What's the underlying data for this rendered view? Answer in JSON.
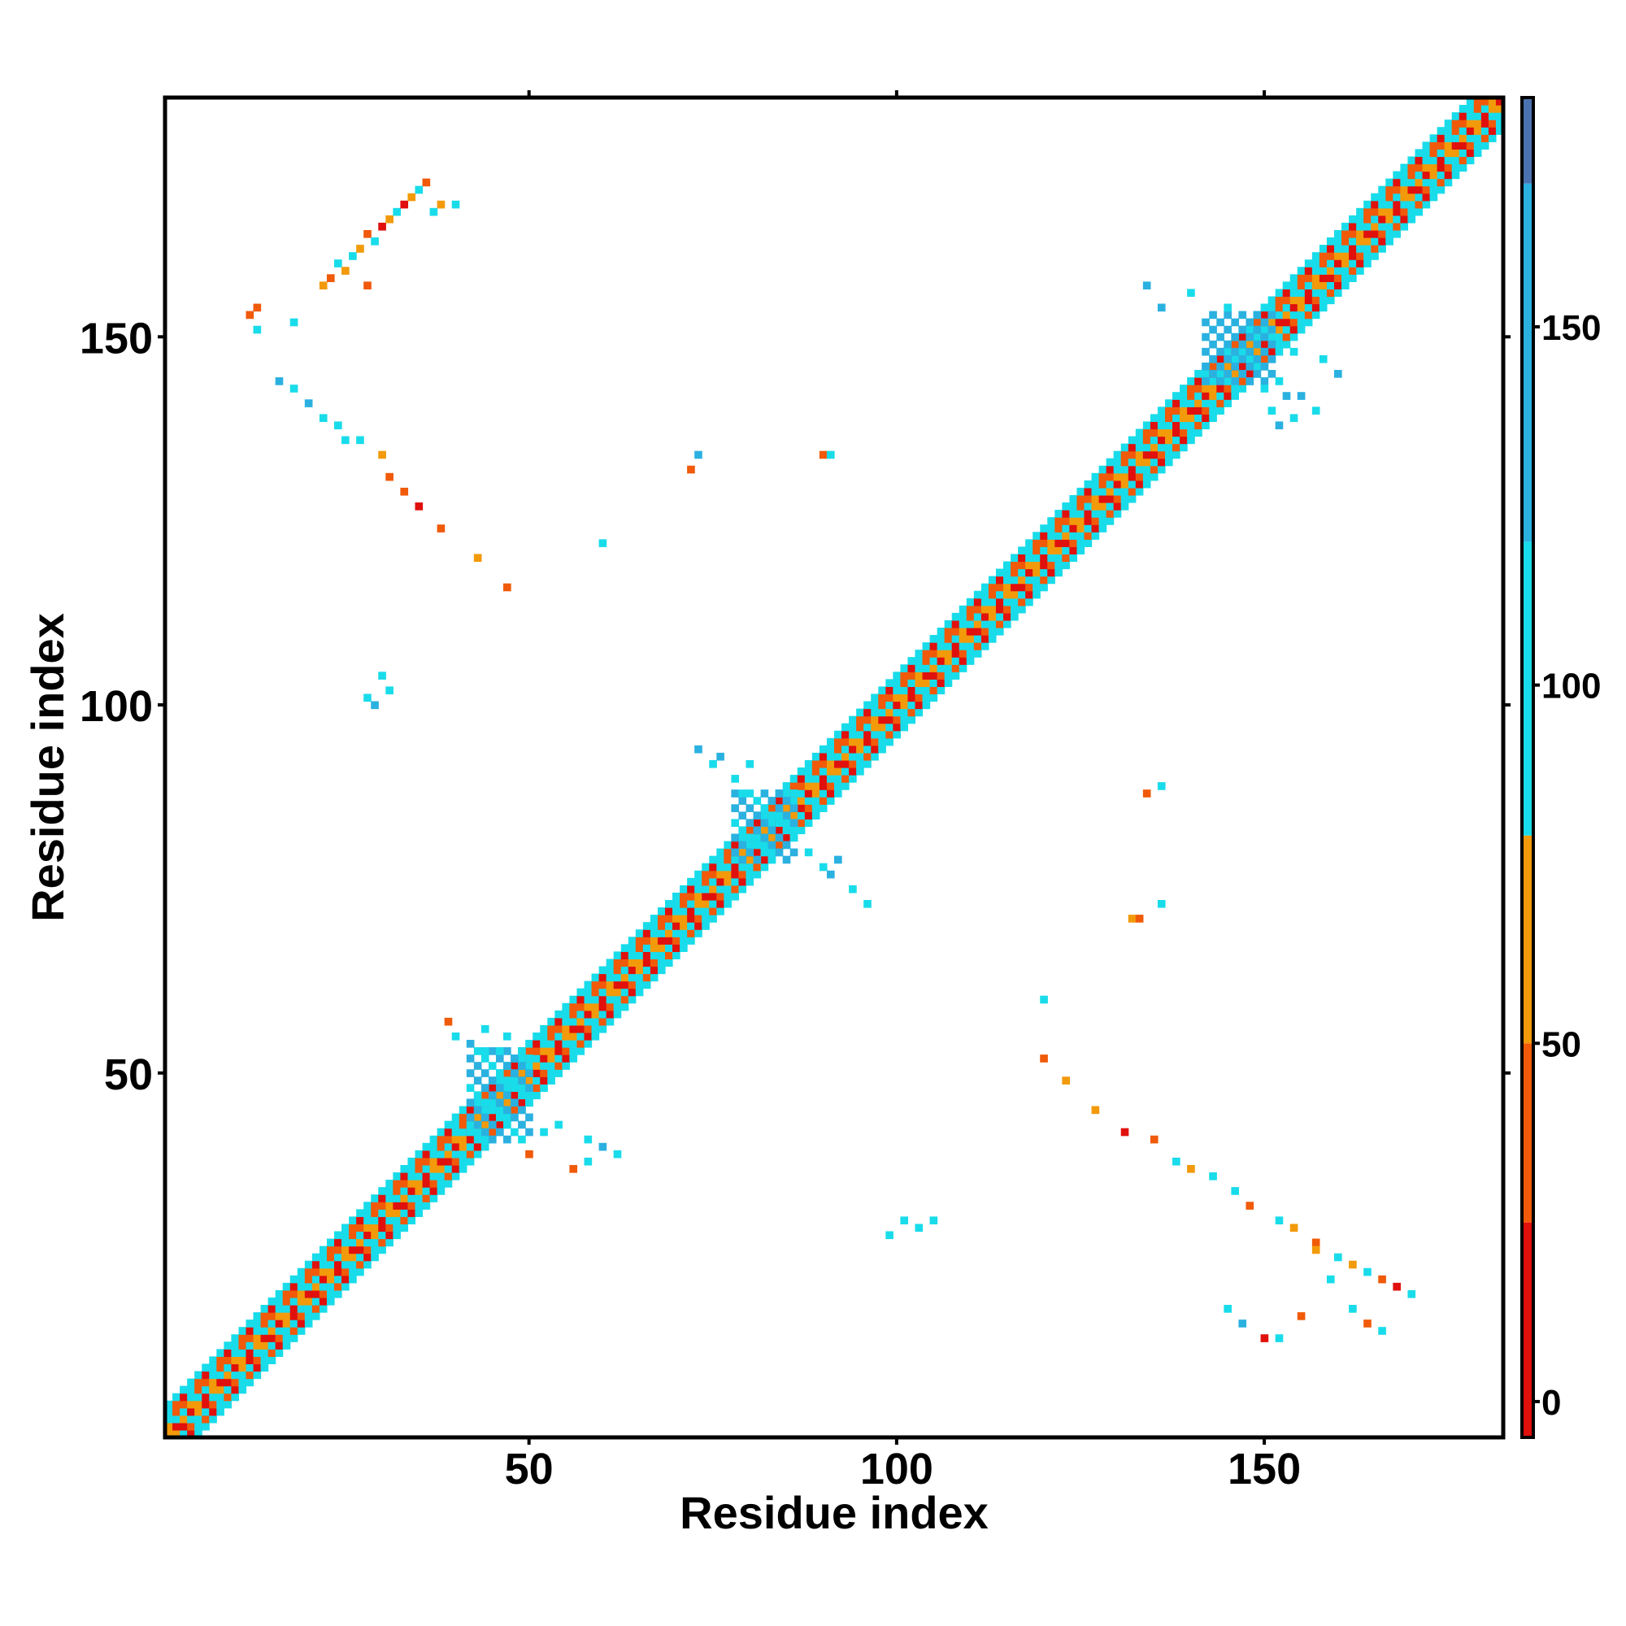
{
  "chart_data": {
    "type": "heatmap",
    "title": "",
    "xlabel": "Residue index",
    "ylabel": "Residue index",
    "xlim": [
      1,
      182
    ],
    "ylim": [
      1,
      182
    ],
    "x_ticks": [
      50,
      100,
      150
    ],
    "y_ticks": [
      50,
      100,
      150
    ],
    "x_tick_labels": [
      "50",
      "100",
      "150"
    ],
    "y_tick_labels": [
      "50",
      "100",
      "150"
    ],
    "grid": false,
    "legend": "colorbar-right",
    "colorbar": {
      "range": [
        -5,
        182
      ],
      "ticks": [
        0,
        50,
        100,
        150
      ],
      "tick_labels": [
        "0",
        "50",
        "100",
        "150"
      ],
      "bands": [
        {
          "from": -5,
          "to": 25,
          "color": "#e0100c"
        },
        {
          "from": 25,
          "to": 50,
          "color": "#f05a08"
        },
        {
          "from": 50,
          "to": 79,
          "color": "#f29a0a"
        },
        {
          "from": 79,
          "to": 120,
          "color": "#19dcea"
        },
        {
          "from": 120,
          "to": 170,
          "color": "#2ab1e0"
        },
        {
          "from": 170,
          "to": 182,
          "color": "#4a72b0"
        }
      ]
    },
    "diagonal_band": {
      "half_width": 4
    },
    "dense_blocks": [
      {
        "x": [
          42,
          50
        ],
        "y": [
          41,
          53
        ],
        "value": 110
      },
      {
        "x": [
          78,
          86
        ],
        "y": [
          79,
          88
        ],
        "value": 105
      },
      {
        "x": [
          142,
          151
        ],
        "y": [
          144,
          153
        ],
        "value": 120
      }
    ],
    "off_diagonal_contacts": [
      [
        12,
        153,
        40
      ],
      [
        13,
        151,
        100
      ],
      [
        13,
        154,
        30
      ],
      [
        18,
        152,
        100
      ],
      [
        16,
        144,
        120
      ],
      [
        18,
        143,
        100
      ],
      [
        22,
        157,
        60
      ],
      [
        23,
        158,
        30
      ],
      [
        24,
        160,
        110
      ],
      [
        25,
        159,
        50
      ],
      [
        26,
        161,
        110
      ],
      [
        27,
        162,
        60
      ],
      [
        28,
        157,
        30
      ],
      [
        28,
        164,
        40
      ],
      [
        29,
        163,
        110
      ],
      [
        30,
        165,
        20
      ],
      [
        31,
        166,
        60
      ],
      [
        32,
        167,
        100
      ],
      [
        33,
        168,
        20
      ],
      [
        34,
        169,
        50
      ],
      [
        35,
        170,
        110
      ],
      [
        36,
        171,
        30
      ],
      [
        37,
        167,
        110
      ],
      [
        38,
        168,
        60
      ],
      [
        40,
        168,
        100
      ],
      [
        20,
        141,
        120
      ],
      [
        22,
        139,
        100
      ],
      [
        24,
        138,
        110
      ],
      [
        25,
        136,
        100
      ],
      [
        27,
        136,
        110
      ],
      [
        30,
        134,
        60
      ],
      [
        31,
        131,
        30
      ],
      [
        33,
        129,
        40
      ],
      [
        35,
        127,
        20
      ],
      [
        38,
        124,
        30
      ],
      [
        43,
        120,
        50
      ],
      [
        47,
        116,
        40
      ],
      [
        30,
        104,
        100
      ],
      [
        28,
        101,
        100
      ],
      [
        29,
        100,
        120
      ],
      [
        31,
        102,
        110
      ],
      [
        72,
        132,
        30
      ],
      [
        73,
        134,
        120
      ],
      [
        90,
        134,
        40
      ],
      [
        91,
        134,
        100
      ],
      [
        60,
        122,
        100
      ],
      [
        73,
        94,
        120
      ],
      [
        76,
        93,
        120
      ],
      [
        75,
        92,
        110
      ],
      [
        78,
        90,
        100
      ],
      [
        80,
        92,
        100
      ],
      [
        79,
        88,
        100
      ],
      [
        39,
        57,
        40
      ],
      [
        40,
        55,
        110
      ],
      [
        42,
        54,
        120
      ],
      [
        44,
        56,
        110
      ],
      [
        44,
        53,
        100
      ],
      [
        46,
        53,
        100
      ],
      [
        47,
        55,
        110
      ],
      [
        134,
        157,
        120
      ],
      [
        136,
        154,
        120
      ],
      [
        140,
        156,
        100
      ],
      [
        145,
        154,
        110
      ],
      [
        151,
        140,
        110
      ],
      [
        152,
        138,
        120
      ],
      [
        154,
        139,
        100
      ],
      [
        150,
        143,
        110
      ],
      [
        153,
        142,
        120
      ],
      [
        120,
        52,
        40
      ],
      [
        123,
        49,
        60
      ],
      [
        127,
        45,
        50
      ],
      [
        131,
        42,
        20
      ],
      [
        135,
        41,
        30
      ],
      [
        138,
        38,
        110
      ],
      [
        140,
        37,
        60
      ],
      [
        143,
        36,
        100
      ],
      [
        146,
        34,
        110
      ],
      [
        148,
        32,
        40
      ],
      [
        152,
        30,
        110
      ],
      [
        154,
        29,
        50
      ],
      [
        157,
        27,
        30
      ],
      [
        160,
        25,
        110
      ],
      [
        162,
        24,
        60
      ],
      [
        164,
        23,
        100
      ],
      [
        166,
        22,
        40
      ],
      [
        168,
        21,
        20
      ],
      [
        170,
        20,
        110
      ],
      [
        157,
        26,
        60
      ],
      [
        159,
        22,
        100
      ],
      [
        162,
        18,
        100
      ],
      [
        164,
        16,
        40
      ],
      [
        166,
        15,
        110
      ],
      [
        155,
        17,
        30
      ],
      [
        152,
        14,
        110
      ],
      [
        150,
        14,
        20
      ],
      [
        145,
        18,
        110
      ],
      [
        147,
        16,
        120
      ],
      [
        101,
        30,
        110
      ],
      [
        103,
        29,
        100
      ],
      [
        105,
        30,
        110
      ],
      [
        99,
        28,
        110
      ],
      [
        134,
        88,
        30
      ],
      [
        136,
        89,
        110
      ],
      [
        132,
        71,
        60
      ],
      [
        133,
        71,
        30
      ],
      [
        136,
        73,
        110
      ],
      [
        120,
        60,
        100
      ],
      [
        50,
        39,
        40
      ],
      [
        52,
        42,
        110
      ],
      [
        54,
        43,
        100
      ],
      [
        58,
        41,
        110
      ],
      [
        60,
        40,
        120
      ],
      [
        58,
        38,
        100
      ],
      [
        56,
        37,
        40
      ],
      [
        62,
        39,
        100
      ],
      [
        88,
        80,
        110
      ],
      [
        90,
        78,
        100
      ],
      [
        92,
        79,
        120
      ],
      [
        94,
        75,
        110
      ],
      [
        96,
        73,
        100
      ],
      [
        91,
        77,
        120
      ],
      [
        152,
        144,
        110
      ],
      [
        155,
        142,
        120
      ],
      [
        157,
        140,
        110
      ],
      [
        158,
        147,
        100
      ],
      [
        160,
        145,
        120
      ],
      [
        154,
        148,
        110
      ]
    ]
  }
}
